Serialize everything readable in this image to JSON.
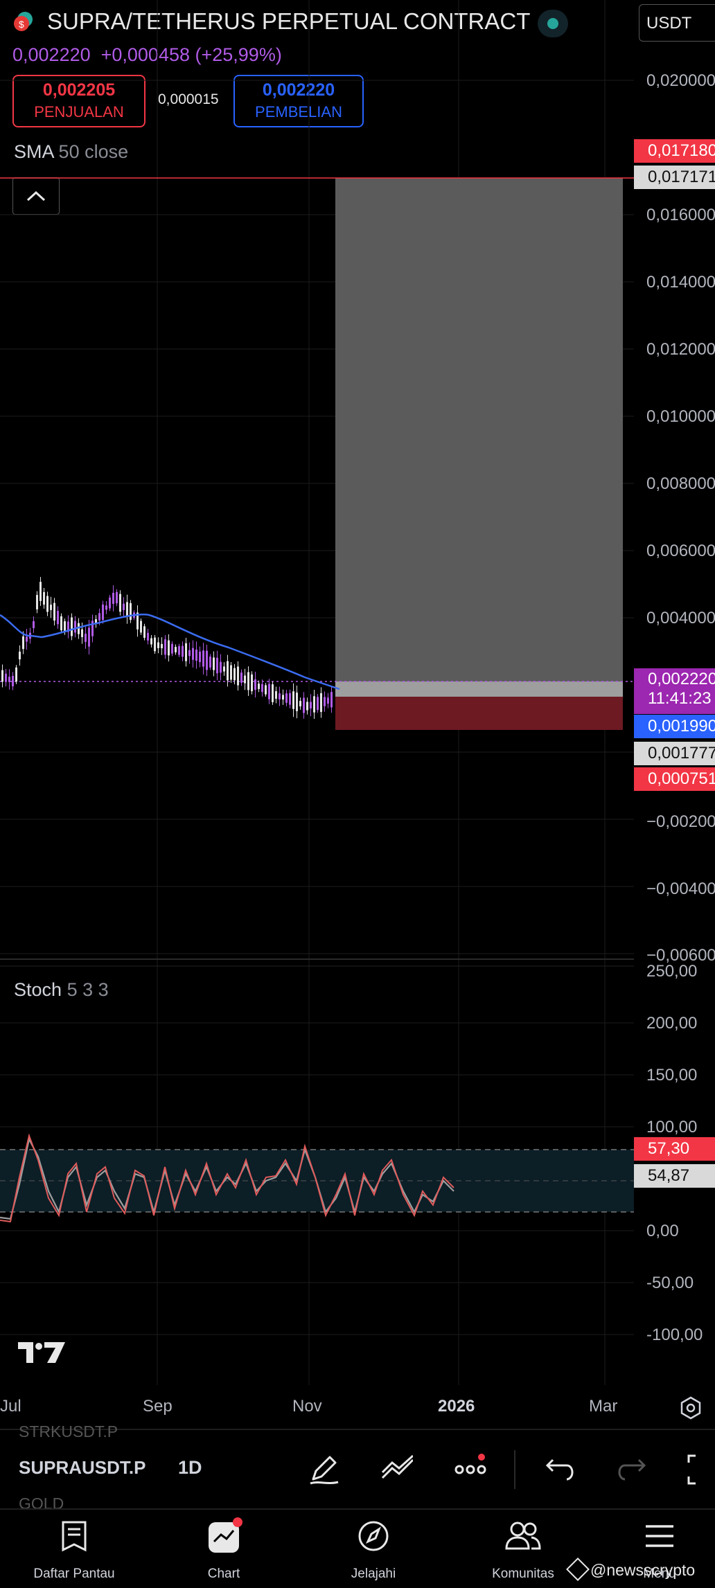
{
  "header": {
    "title": "SUPRA/TETHERUS PERPETUAL CONTRACT",
    "currency": "USDT",
    "price_line": "0,002220  +0,000458 (+25,99%)",
    "sell": {
      "price": "0,002205",
      "label": "PENJUALAN"
    },
    "spread": "0,000015",
    "buy": {
      "price": "0,002220",
      "label": "PEMBELIAN"
    },
    "indicator_name": "SMA",
    "indicator_params": "50 close"
  },
  "price_axis": [
    "0,020000",
    "0,016000",
    "0,014000",
    "0,012000",
    "0,010000",
    "0,008000",
    "0,006000",
    "0,004000",
    "−0,002000",
    "−0,004000",
    "−0,006000"
  ],
  "price_tags": {
    "target_top": "0,017180",
    "target_second": "0,017171",
    "current_price": "0,002220",
    "countdown": "11:41:23",
    "sma_value": "0,001990",
    "entry": "0,001777",
    "stop": "0,000751"
  },
  "stoch": {
    "name": "Stoch",
    "params": "5 3 3",
    "axis": [
      "250,00",
      "200,00",
      "150,00",
      "100,00",
      "0,00",
      "-50,00",
      "-100,00"
    ],
    "k_value": "57,30",
    "d_value": "54,87"
  },
  "time_axis": [
    "Jul",
    "Sep",
    "Nov",
    "2026",
    "Mar"
  ],
  "toolbar": {
    "symbol_prev": "STRKUSDT.P",
    "symbol": "SUPRAUSDT.P",
    "symbol_next": "GOLD",
    "interval": "1D"
  },
  "bottom_nav": [
    "Daftar Pantau",
    "Chart",
    "Jelajahi",
    "Komunitas",
    "Menu"
  ],
  "watermark": "@newsscrypto",
  "colors": {
    "bullish": "#b05be6",
    "bearish": "#e6e6e6",
    "sma": "#3b6cf0",
    "stop_zone": "#6e1a22",
    "target_zone": "#5b5b5b",
    "red_tag": "#f23645",
    "purple_tag": "#9c27b0",
    "blue_tag": "#2962ff"
  }
}
